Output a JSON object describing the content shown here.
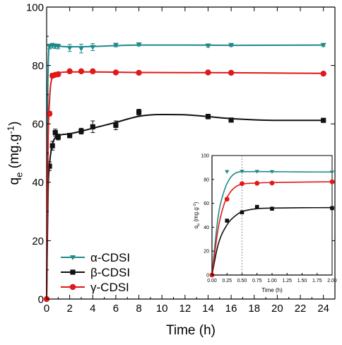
{
  "colors": {
    "alpha": "#1f8a8a",
    "beta": "#111111",
    "gamma": "#e01818",
    "axis": "#000000"
  },
  "legend": {
    "position": "bottom-left",
    "entries": [
      {
        "label": "α-CDSI",
        "marker": "triangle-down",
        "color": "#1f8a8a"
      },
      {
        "label": "β-CDSI",
        "marker": "square",
        "color": "#111111"
      },
      {
        "label": "γ-CDSI",
        "marker": "circle",
        "color": "#e01818"
      }
    ]
  },
  "chart_data": [
    {
      "type": "line",
      "role": "main",
      "xlabel": "Time (h)",
      "ylabel": "q_e (mg.g-1)",
      "ylabel_parts": {
        "q": "q",
        "sub": "e",
        "unit": " (mg.g",
        "sup": "-1",
        "close": ")"
      },
      "xlim": [
        0,
        25
      ],
      "ylim": [
        0,
        100
      ],
      "xticks": [
        0,
        2,
        4,
        6,
        8,
        10,
        12,
        14,
        16,
        18,
        20,
        22,
        24
      ],
      "yticks": [
        0,
        20,
        40,
        60,
        80,
        100
      ],
      "grid": false,
      "series": [
        {
          "name": "α-CDSI",
          "marker": "triangle-down",
          "color": "#1f8a8a",
          "points": [
            {
              "x": 0.25,
              "y": 86.5,
              "err": 0.8
            },
            {
              "x": 0.5,
              "y": 86.8,
              "err": 0.8
            },
            {
              "x": 0.75,
              "y": 86.6,
              "err": 0.8
            },
            {
              "x": 1,
              "y": 86.5,
              "err": 0.8
            },
            {
              "x": 2,
              "y": 86.0,
              "err": 1.2
            },
            {
              "x": 3,
              "y": 85.8,
              "err": 1.5
            },
            {
              "x": 4,
              "y": 86.3,
              "err": 1.2
            },
            {
              "x": 6,
              "y": 87.0,
              "err": 0.6
            },
            {
              "x": 8,
              "y": 87.2,
              "err": 0.5
            },
            {
              "x": 14,
              "y": 86.8,
              "err": 0.5
            },
            {
              "x": 16,
              "y": 87.0,
              "err": 0.5
            },
            {
              "x": 24,
              "y": 87.0,
              "err": 0.5
            }
          ],
          "curve": [
            [
              0,
              0
            ],
            [
              0.1,
              72
            ],
            [
              0.25,
              86.5
            ],
            [
              0.5,
              86.8
            ],
            [
              1,
              86.6
            ],
            [
              2,
              86.4
            ],
            [
              4,
              86.5
            ],
            [
              8,
              87.0
            ],
            [
              12,
              87.0
            ],
            [
              16,
              86.9
            ],
            [
              24,
              87.0
            ]
          ]
        },
        {
          "name": "β-CDSI",
          "marker": "square",
          "color": "#111111",
          "points": [
            {
              "x": 0.25,
              "y": 45.5,
              "err": 1.5
            },
            {
              "x": 0.5,
              "y": 52.5,
              "err": 1.5
            },
            {
              "x": 0.75,
              "y": 57.0,
              "err": 1.2
            },
            {
              "x": 1,
              "y": 55.5,
              "err": 1.0
            },
            {
              "x": 2,
              "y": 56.0,
              "err": 0.8
            },
            {
              "x": 3,
              "y": 57.5,
              "err": 1.0
            },
            {
              "x": 4,
              "y": 59.0,
              "err": 2.0
            },
            {
              "x": 6,
              "y": 59.5,
              "err": 1.5
            },
            {
              "x": 8,
              "y": 64.0,
              "err": 1.0
            },
            {
              "x": 14,
              "y": 62.5,
              "err": 0.8
            },
            {
              "x": 16,
              "y": 61.3,
              "err": 0.6
            },
            {
              "x": 24,
              "y": 61.2,
              "err": 0.6
            }
          ],
          "curve": [
            [
              0,
              0
            ],
            [
              0.12,
              36
            ],
            [
              0.25,
              46
            ],
            [
              0.5,
              53
            ],
            [
              0.75,
              55.3
            ],
            [
              1,
              56
            ],
            [
              2,
              56.6
            ],
            [
              3,
              57.5
            ],
            [
              4,
              58.5
            ],
            [
              6,
              60.5
            ],
            [
              8,
              62.6
            ],
            [
              10,
              63.2
            ],
            [
              12,
              63.1
            ],
            [
              14,
              62.5
            ],
            [
              16,
              61.8
            ],
            [
              20,
              61.2
            ],
            [
              24,
              61.2
            ]
          ]
        },
        {
          "name": "γ-CDSI",
          "marker": "circle",
          "color": "#e01818",
          "points": [
            {
              "x": 0,
              "y": 0,
              "err": 0
            },
            {
              "x": 0.25,
              "y": 63.5,
              "err": 0.8
            },
            {
              "x": 0.5,
              "y": 76.5,
              "err": 0.8
            },
            {
              "x": 0.75,
              "y": 76.8,
              "err": 0.6
            },
            {
              "x": 1,
              "y": 77.0,
              "err": 0.6
            },
            {
              "x": 2,
              "y": 78.0,
              "err": 0.5
            },
            {
              "x": 3,
              "y": 78.0,
              "err": 0.5
            },
            {
              "x": 4,
              "y": 78.0,
              "err": 0.5
            },
            {
              "x": 6,
              "y": 77.6,
              "err": 0.5
            },
            {
              "x": 8,
              "y": 77.5,
              "err": 0.5
            },
            {
              "x": 14,
              "y": 77.6,
              "err": 0.5
            },
            {
              "x": 16,
              "y": 77.5,
              "err": 0.5
            },
            {
              "x": 24,
              "y": 77.2,
              "err": 0.5
            }
          ],
          "curve": [
            [
              0,
              0
            ],
            [
              0.12,
              52
            ],
            [
              0.25,
              68
            ],
            [
              0.5,
              76
            ],
            [
              1,
              77.5
            ],
            [
              2,
              77.8
            ],
            [
              4,
              77.8
            ],
            [
              8,
              77.6
            ],
            [
              16,
              77.5
            ],
            [
              24,
              77.3
            ]
          ]
        }
      ]
    },
    {
      "type": "line",
      "role": "inset",
      "xlabel": "Time (h)",
      "ylabel": "q_e (mg.g-1)",
      "xlim": [
        0,
        2
      ],
      "ylim": [
        0,
        100
      ],
      "xticks": [
        0,
        0.25,
        0.5,
        0.75,
        1.0,
        1.25,
        1.5,
        1.75,
        2.0
      ],
      "xtick_labels": [
        "0.00",
        "0.25",
        "0.50",
        "0.75",
        "1.00",
        "1.25",
        "1.50",
        "1.75",
        "2.00"
      ],
      "yticks": [
        0,
        20,
        40,
        60,
        80,
        100
      ],
      "grid": false,
      "vline_x": 0.5,
      "series": [
        {
          "name": "α-CDSI",
          "marker": "triangle-down",
          "color": "#1f8a8a",
          "points": [
            {
              "x": 0.25,
              "y": 86.5
            },
            {
              "x": 0.5,
              "y": 86.8
            },
            {
              "x": 0.75,
              "y": 86.6
            },
            {
              "x": 1.0,
              "y": 86.5
            },
            {
              "x": 2.0,
              "y": 86.0
            }
          ],
          "curve": [
            [
              0,
              0
            ],
            [
              0.1,
              48
            ],
            [
              0.2,
              70
            ],
            [
              0.3,
              81
            ],
            [
              0.4,
              85.5
            ],
            [
              0.5,
              86.5
            ],
            [
              0.75,
              86.6
            ],
            [
              1,
              86.5
            ],
            [
              1.5,
              86.3
            ],
            [
              2,
              86.2
            ]
          ]
        },
        {
          "name": "β-CDSI",
          "marker": "square",
          "color": "#111111",
          "points": [
            {
              "x": 0.25,
              "y": 45.5
            },
            {
              "x": 0.5,
              "y": 52.5
            },
            {
              "x": 0.75,
              "y": 57.0
            },
            {
              "x": 1.0,
              "y": 55.5
            },
            {
              "x": 2.0,
              "y": 56.0
            }
          ],
          "curve": [
            [
              0,
              0
            ],
            [
              0.1,
              25
            ],
            [
              0.25,
              42
            ],
            [
              0.4,
              50
            ],
            [
              0.5,
              53
            ],
            [
              0.75,
              55.5
            ],
            [
              1,
              56
            ],
            [
              1.5,
              56.3
            ],
            [
              2,
              56.4
            ]
          ]
        },
        {
          "name": "γ-CDSI",
          "marker": "circle",
          "color": "#e01818",
          "points": [
            {
              "x": 0,
              "y": 0
            },
            {
              "x": 0.25,
              "y": 63.5
            },
            {
              "x": 0.5,
              "y": 76.5
            },
            {
              "x": 0.75,
              "y": 76.8
            },
            {
              "x": 1.0,
              "y": 77.0
            },
            {
              "x": 2.0,
              "y": 78.0
            }
          ],
          "curve": [
            [
              0,
              0
            ],
            [
              0.1,
              38
            ],
            [
              0.2,
              59
            ],
            [
              0.3,
              69
            ],
            [
              0.4,
              74
            ],
            [
              0.5,
              76
            ],
            [
              0.75,
              77
            ],
            [
              1,
              77.4
            ],
            [
              1.5,
              77.8
            ],
            [
              2,
              78
            ]
          ]
        }
      ]
    }
  ]
}
